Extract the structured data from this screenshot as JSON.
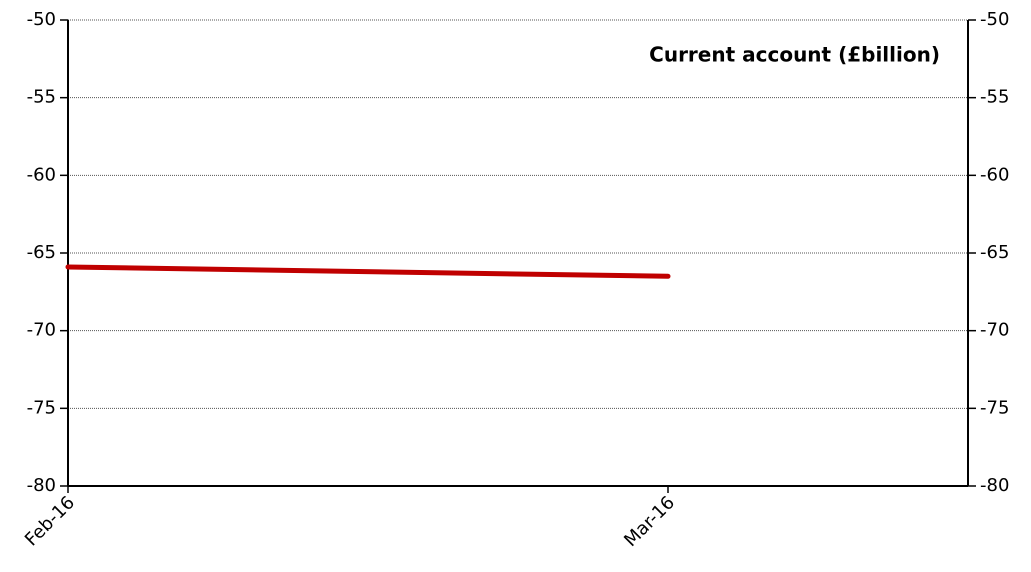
{
  "chart_data": {
    "type": "line",
    "title": "Current account (£billion)",
    "categories": [
      "Feb-16",
      "Mar-16"
    ],
    "series": [
      {
        "name": "Current account",
        "color": "#c00000",
        "values": [
          -65.9,
          -66.5
        ]
      }
    ],
    "ylim": [
      -80,
      -50
    ],
    "yticks": [
      -80,
      -75,
      -70,
      -65,
      -60,
      -55,
      -50
    ],
    "grid": true
  }
}
